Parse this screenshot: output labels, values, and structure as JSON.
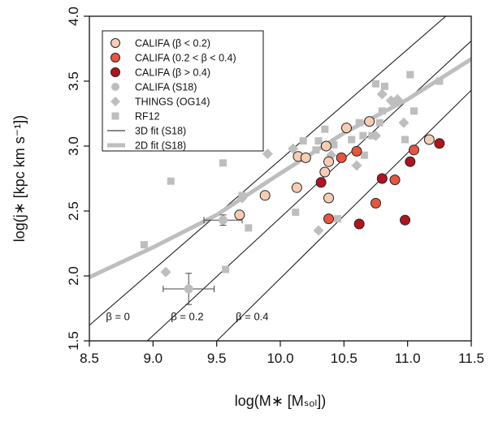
{
  "chart_data": {
    "type": "scatter",
    "xlabel": "log(M∗ [Mₛₒₗ])",
    "ylabel": "log(j∗ [kpc km s⁻¹])",
    "xlim": [
      8.5,
      11.5
    ],
    "ylim": [
      1.5,
      4.0
    ],
    "xticks": [
      "8.5",
      "9.0",
      "9.5",
      "10.0",
      "10.5",
      "11.0",
      "11.5"
    ],
    "yticks": [
      "1.5",
      "2.0",
      "2.5",
      "3.0",
      "3.5",
      "4.0"
    ],
    "grid": false,
    "legend_position": "top-left",
    "colors": {
      "califa_low": "#f6cdb4",
      "califa_mid": "#e8553d",
      "califa_high": "#b3121f",
      "grey": "#bebebe",
      "edge": "#222222"
    },
    "series": [
      {
        "name": "CALIFA (β < 0.2)",
        "marker": "circle",
        "color": "#f6cdb4",
        "points": [
          [
            9.68,
            2.47
          ],
          [
            9.88,
            2.62
          ],
          [
            10.13,
            2.68
          ],
          [
            10.14,
            2.92
          ],
          [
            10.2,
            2.91
          ],
          [
            10.35,
            2.8
          ],
          [
            10.36,
            3.0
          ],
          [
            10.38,
            2.88
          ],
          [
            10.38,
            2.6
          ],
          [
            10.52,
            3.14
          ],
          [
            10.7,
            3.19
          ],
          [
            11.17,
            3.05
          ]
        ]
      },
      {
        "name": "CALIFA (0.2 < β < 0.4)",
        "marker": "circle",
        "color": "#e8553d",
        "points": [
          [
            10.38,
            2.44
          ],
          [
            10.48,
            2.91
          ],
          [
            10.6,
            2.96
          ],
          [
            10.75,
            2.56
          ],
          [
            10.9,
            2.74
          ],
          [
            11.05,
            2.97
          ]
        ]
      },
      {
        "name": "CALIFA (β > 0.4)",
        "marker": "circle",
        "color": "#b3121f",
        "points": [
          [
            10.32,
            2.72
          ],
          [
            10.62,
            2.4
          ],
          [
            10.8,
            2.75
          ],
          [
            10.98,
            2.43
          ],
          [
            11.02,
            2.88
          ],
          [
            11.25,
            3.02
          ]
        ]
      },
      {
        "name": "CALIFA (S18)",
        "marker": "circle",
        "color": "#bebebe",
        "points": [
          [
            9.28,
            1.9
          ],
          [
            9.55,
            2.43
          ]
        ],
        "xerr": [
          0.2,
          0.15
        ],
        "yerr": [
          0.12,
          0.04
        ]
      },
      {
        "name": "THINGS (OG14)",
        "marker": "diamond",
        "color": "#bebebe",
        "points": [
          [
            9.1,
            2.03
          ],
          [
            9.7,
            2.6
          ],
          [
            9.9,
            2.94
          ],
          [
            10.1,
            2.98
          ],
          [
            10.3,
            2.35
          ],
          [
            10.4,
            2.93
          ],
          [
            10.6,
            2.85
          ],
          [
            10.75,
            3.08
          ],
          [
            10.8,
            3.4
          ],
          [
            10.87,
            3.35
          ],
          [
            10.92,
            3.36
          ],
          [
            10.97,
            3.18
          ]
        ]
      },
      {
        "name": "RF12",
        "marker": "square",
        "color": "#bebebe",
        "points": [
          [
            8.93,
            2.24
          ],
          [
            9.14,
            2.73
          ],
          [
            9.55,
            2.87
          ],
          [
            9.57,
            2.05
          ],
          [
            9.7,
            2.62
          ],
          [
            9.75,
            2.37
          ],
          [
            10.12,
            2.49
          ],
          [
            10.18,
            3.04
          ],
          [
            10.28,
            2.97
          ],
          [
            10.3,
            3.04
          ],
          [
            10.35,
            3.13
          ],
          [
            10.42,
            3.01
          ],
          [
            10.45,
            2.44
          ],
          [
            10.56,
            3.05
          ],
          [
            10.62,
            3.18
          ],
          [
            10.65,
            3.08
          ],
          [
            10.66,
            2.93
          ],
          [
            10.72,
            3.08
          ],
          [
            10.75,
            3.48
          ],
          [
            10.78,
            3.18
          ],
          [
            10.8,
            3.27
          ],
          [
            10.82,
            3.46
          ],
          [
            10.9,
            3.33
          ],
          [
            10.98,
            3.05
          ],
          [
            11.02,
            3.55
          ],
          [
            11.05,
            3.27
          ],
          [
            11.25,
            3.5
          ]
        ]
      },
      {
        "name": "3D fit (S18)",
        "type": "line",
        "color": "#111111",
        "lines": [
          {
            "label": "β = 0",
            "x": [
              8.5,
              11.3
            ],
            "y": [
              1.62,
              4.0
            ]
          },
          {
            "label": "β = 0.2",
            "x": [
              8.9,
              11.5
            ],
            "y": [
              1.45,
              3.81
            ]
          },
          {
            "label": "β = 0.4",
            "x": [
              9.45,
              11.5
            ],
            "y": [
              1.45,
              3.43
            ]
          }
        ]
      },
      {
        "name": "2D fit (S18)",
        "type": "line",
        "color": "#bebebe",
        "x": [
          8.5,
          9.0,
          9.5,
          10.0,
          10.5,
          11.0,
          11.5
        ],
        "y": [
          1.99,
          2.22,
          2.47,
          2.79,
          3.1,
          3.36,
          3.67
        ]
      }
    ],
    "annotations": [
      {
        "text": "β = 0",
        "x": 8.63,
        "y": 1.66
      },
      {
        "text": "β = 0.2",
        "x": 9.14,
        "y": 1.66
      },
      {
        "text": "β = 0.4",
        "x": 9.65,
        "y": 1.66
      }
    ]
  }
}
